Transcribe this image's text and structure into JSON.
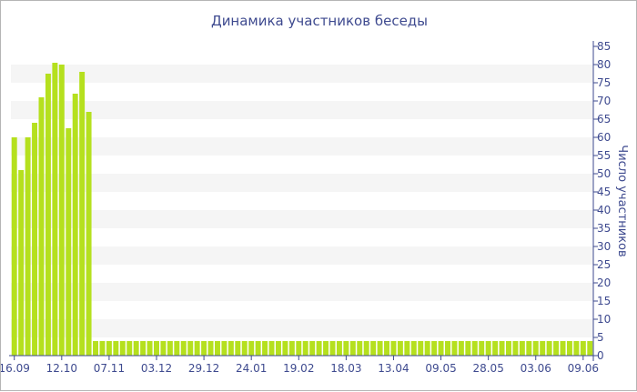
{
  "chart_data": {
    "type": "bar",
    "title": "Динамика участников беседы",
    "ylabel": "Число участников",
    "xlabel": "",
    "ylim": [
      0,
      85
    ],
    "y_ticks": [
      0,
      5,
      10,
      15,
      20,
      25,
      30,
      35,
      40,
      45,
      50,
      55,
      60,
      65,
      70,
      75,
      80,
      85
    ],
    "x_tick_labels": [
      "16.09",
      "12.10",
      "07.11",
      "03.12",
      "29.12",
      "24.01",
      "19.02",
      "18.03",
      "13.04",
      "09.05",
      "28.05",
      "03.06",
      "09.06"
    ],
    "x_tick_bar_index": [
      0,
      7,
      14,
      21,
      28,
      35,
      42,
      49,
      56,
      63,
      70,
      77,
      84
    ],
    "grid": "alternating horizontal bands",
    "y_axis_position": "right",
    "legend": "none",
    "values": [
      60,
      51,
      60,
      64,
      71,
      77.5,
      80.5,
      80,
      62.5,
      72,
      78,
      67,
      4,
      4,
      4,
      4,
      4,
      4,
      4,
      4,
      4,
      4,
      4,
      4,
      4,
      4,
      4,
      4,
      4,
      4,
      4,
      4,
      4,
      4,
      4,
      4,
      4,
      4,
      4,
      4,
      4,
      4,
      4,
      4,
      4,
      4,
      4,
      4,
      4,
      4,
      4,
      4,
      4,
      4,
      4,
      4,
      4,
      4,
      4,
      4,
      4,
      4,
      4,
      4,
      4,
      4,
      4,
      4,
      4,
      4,
      4,
      4,
      4,
      4,
      4,
      4,
      4,
      4,
      4,
      4,
      4,
      4,
      4,
      4,
      4,
      4
    ],
    "colors": {
      "bar": "#b5e01e",
      "band": "#f5f5f5",
      "axis": "#3e4a8f",
      "title": "#3e4a8f"
    }
  }
}
